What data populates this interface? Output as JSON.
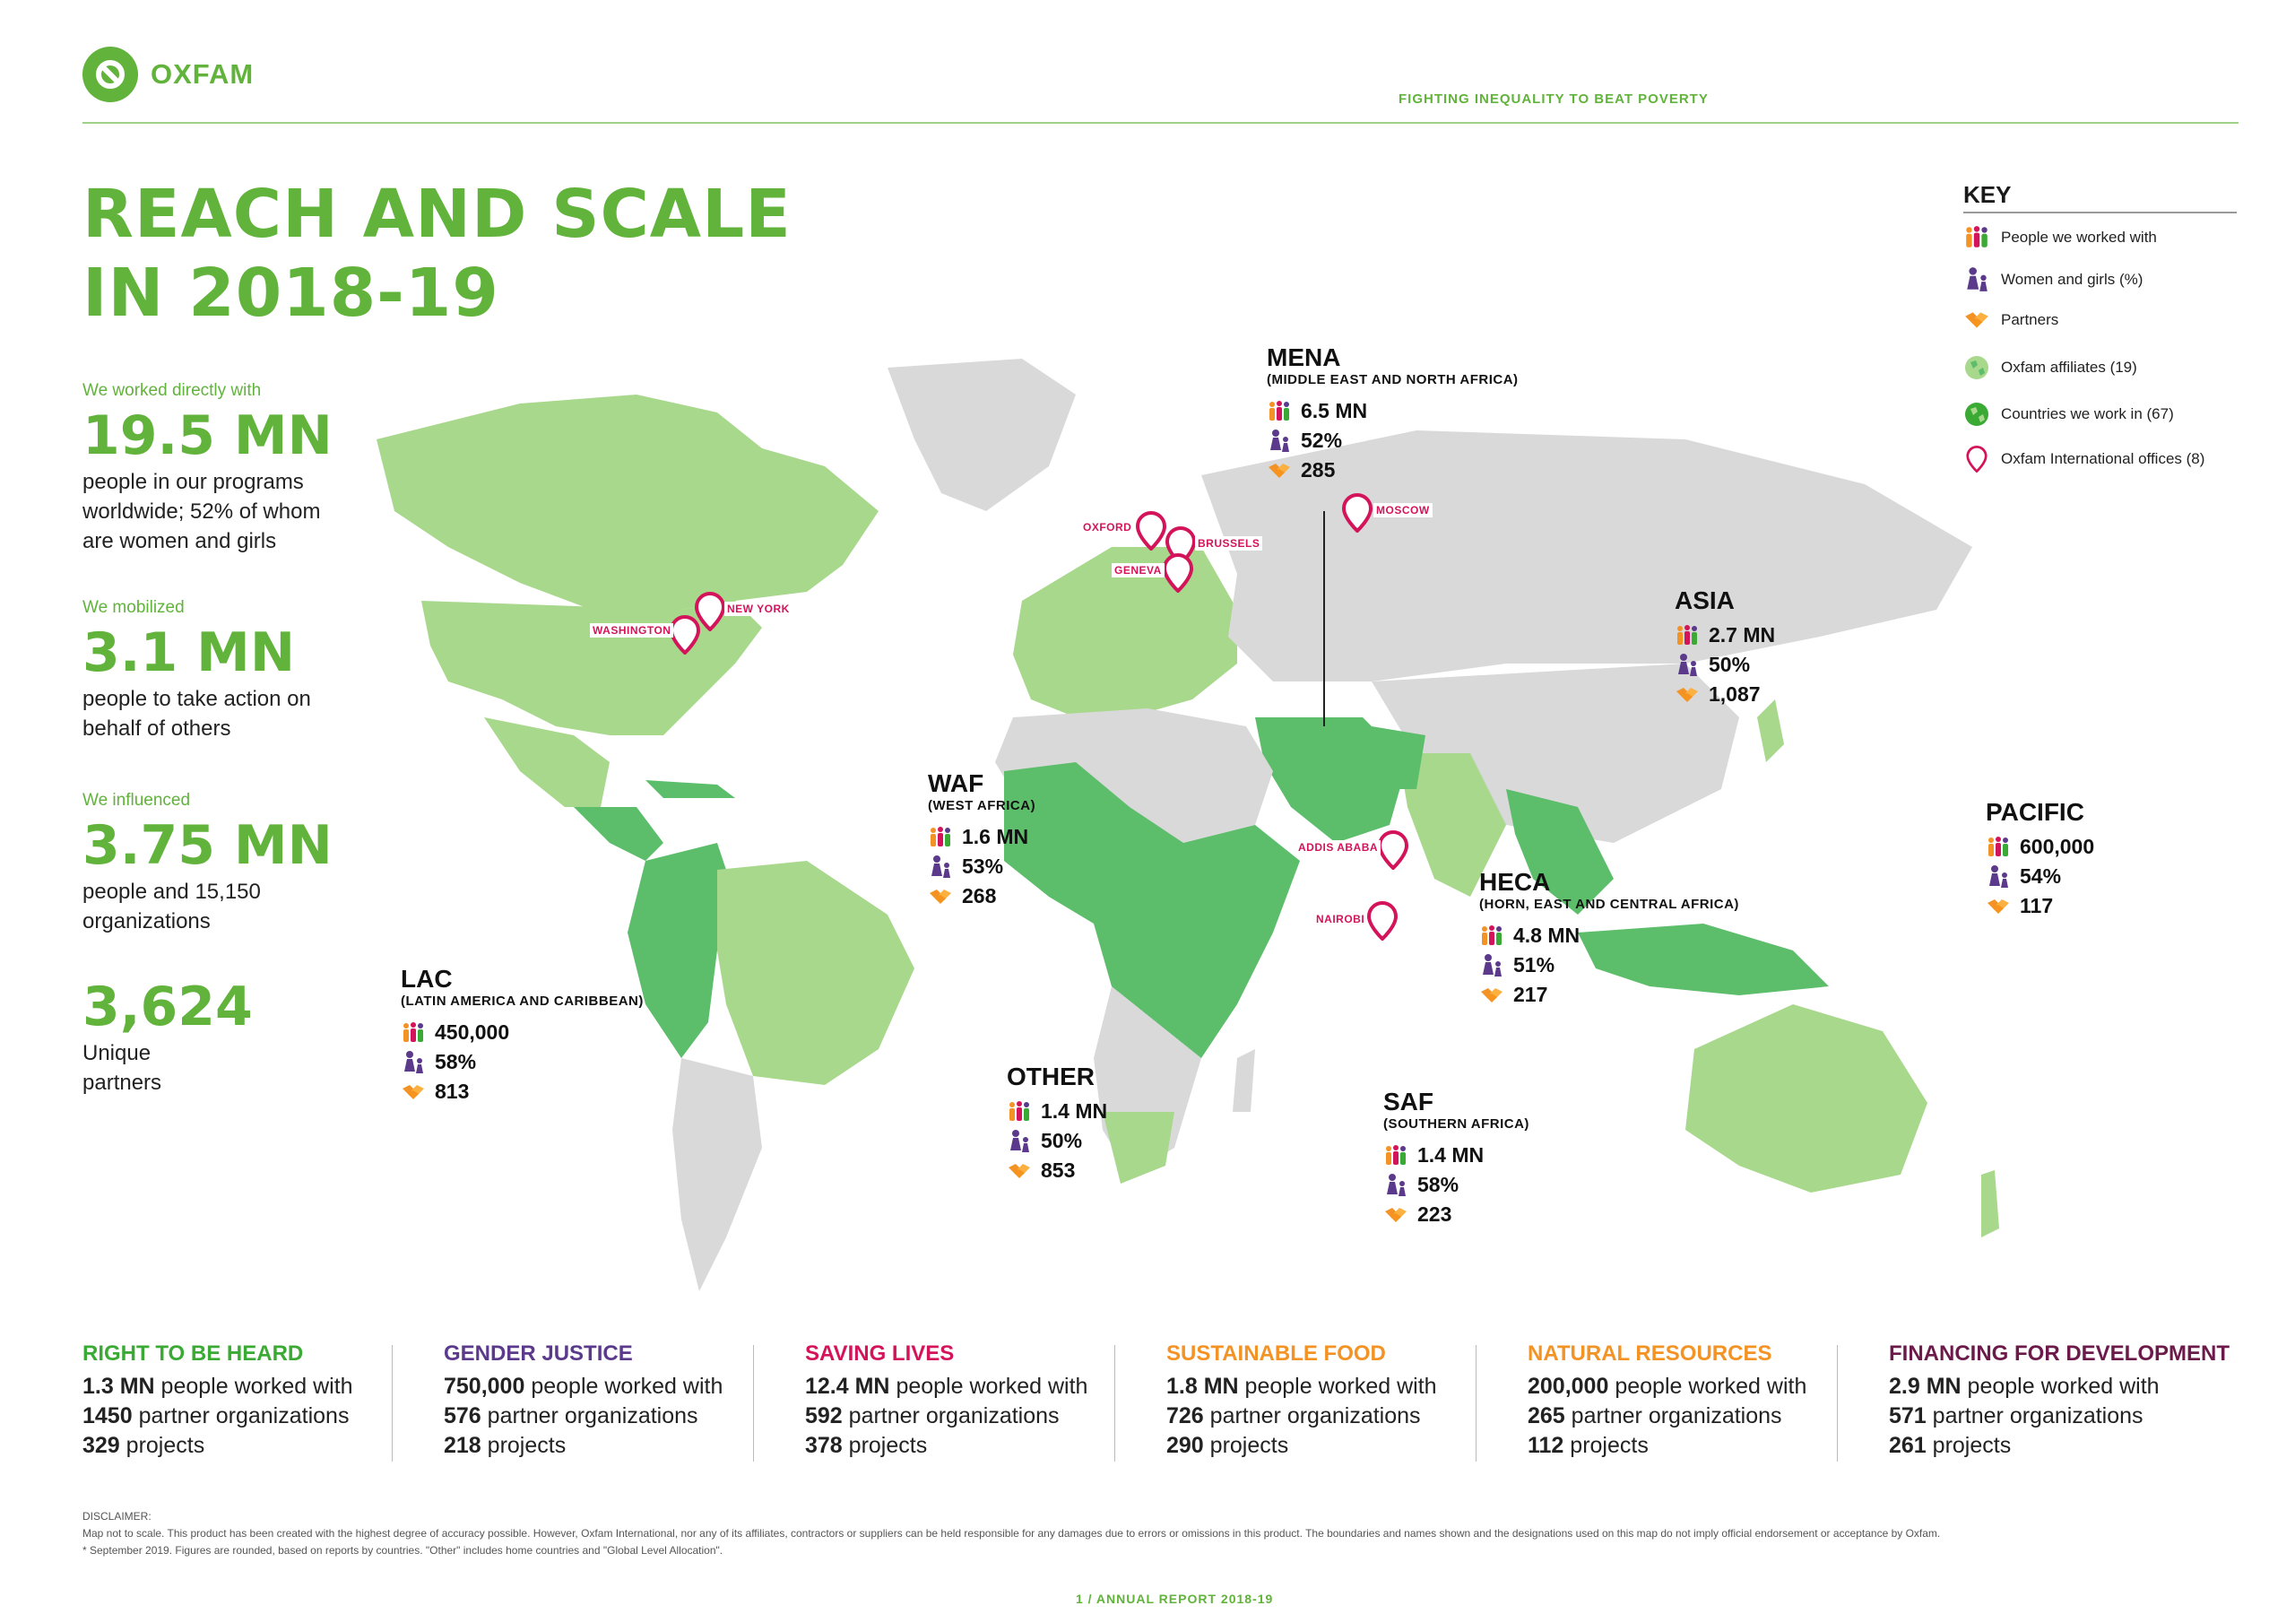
{
  "brand": {
    "name": "OXFAM",
    "tagline": "FIGHTING INEQUALITY TO BEAT POVERTY",
    "accent": "#61b33b"
  },
  "title": {
    "line1": "REACH AND SCALE",
    "line2": "IN 2018-19"
  },
  "stats": [
    {
      "label": "We worked directly with",
      "value": "19.5 MN",
      "text": [
        "people in our programs",
        "worldwide; 52% of whom",
        "are women and girls"
      ]
    },
    {
      "label": "We mobilized",
      "value": "3.1 MN",
      "text": [
        "people to take action on",
        "behalf of others"
      ]
    },
    {
      "label": "We influenced",
      "value": "3.75 MN",
      "text": [
        "people and 15,150",
        "organizations"
      ]
    },
    {
      "label": "",
      "value": "3,624",
      "text": [
        "Unique",
        "partners"
      ]
    }
  ],
  "key": {
    "title": "KEY",
    "items": [
      {
        "icon": "people-icon",
        "label": "People we worked with"
      },
      {
        "icon": "women-girls-icon",
        "label": "Women and girls (%)"
      },
      {
        "icon": "partners-icon",
        "label": "Partners"
      },
      {
        "icon": "globe-light-icon",
        "label": "Oxfam affiliates (19)"
      },
      {
        "icon": "globe-dark-icon",
        "label": "Countries we work in (67)"
      },
      {
        "icon": "map-pin-icon",
        "label": "Oxfam International offices (8)"
      }
    ]
  },
  "colors": {
    "affiliate": "#a8d88c",
    "works_in": "#5cbd6b",
    "other_land": "#d9d9d9",
    "pin": "#d4145a",
    "water": "#ffffff"
  },
  "regions": [
    {
      "id": "mena",
      "name": "MENA",
      "sub": "(MIDDLE EAST AND NORTH AFRICA)",
      "people": "6.5 MN",
      "women": "52%",
      "partners": "285"
    },
    {
      "id": "asia",
      "name": "ASIA",
      "sub": "",
      "people": "2.7 MN",
      "women": "50%",
      "partners": "1,087"
    },
    {
      "id": "waf",
      "name": "WAF",
      "sub": "(WEST AFRICA)",
      "people": "1.6 MN",
      "women": "53%",
      "partners": "268"
    },
    {
      "id": "pacific",
      "name": "PACIFIC",
      "sub": "",
      "people": "600,000",
      "women": "54%",
      "partners": "117"
    },
    {
      "id": "heca",
      "name": "HECA",
      "sub": "(HORN, EAST AND CENTRAL AFRICA)",
      "people": "4.8 MN",
      "women": "51%",
      "partners": "217"
    },
    {
      "id": "lac",
      "name": "LAC",
      "sub": "(LATIN AMERICA AND CARIBBEAN)",
      "people": "450,000",
      "women": "58%",
      "partners": "813"
    },
    {
      "id": "other",
      "name": "OTHER",
      "sub": "",
      "people": "1.4 MN",
      "women": "50%",
      "partners": "853"
    },
    {
      "id": "saf",
      "name": "SAF",
      "sub": "(SOUTHERN AFRICA)",
      "people": "1.4 MN",
      "women": "58%",
      "partners": "223"
    }
  ],
  "offices": [
    "OXFORD",
    "BRUSSELS",
    "GENEVA",
    "MOSCOW",
    "WASHINGTON",
    "NEW YORK",
    "ADDIS ABABA",
    "NAIROBI"
  ],
  "themes": [
    {
      "title": "RIGHT TO BE HEARD",
      "color": "#3aaa35",
      "people": "1.3 MN",
      "partners": "1450",
      "projects": "329"
    },
    {
      "title": "GENDER JUSTICE",
      "color": "#5b3a8c",
      "people": "750,000",
      "partners": "576",
      "projects": "218"
    },
    {
      "title": "SAVING LIVES",
      "color": "#d4145a",
      "people": "12.4 MN",
      "partners": "592",
      "projects": "378"
    },
    {
      "title": "SUSTAINABLE FOOD",
      "color": "#f39325",
      "people": "1.8 MN",
      "partners": "726",
      "projects": "290"
    },
    {
      "title": "NATURAL RESOURCES",
      "color": "#f39325",
      "people": "200,000",
      "partners": "265",
      "projects": "112"
    },
    {
      "title": "FINANCING FOR DEVELOPMENT",
      "color": "#6b1a4a",
      "people": "2.9 MN",
      "partners": "571",
      "projects": "261"
    }
  ],
  "theme_labels": {
    "people": "people worked with",
    "partners": "partner organizations",
    "projects": "projects"
  },
  "disclaimer": {
    "heading": "DISCLAIMER:",
    "line1": "Map not to scale. This product has been created with the highest degree of accuracy possible. However, Oxfam International, nor any of its affiliates, contractors or suppliers can be held responsible for any damages due to errors or omissions in this product. The boundaries and names shown and the designations used on this map do not imply official endorsement or acceptance by Oxfam.",
    "line2": "* September 2019. Figures are rounded, based on reports by countries. \"Other\" includes home countries and \"Global Level Allocation\"."
  },
  "footer": "1  /  ANNUAL REPORT 2018-19"
}
